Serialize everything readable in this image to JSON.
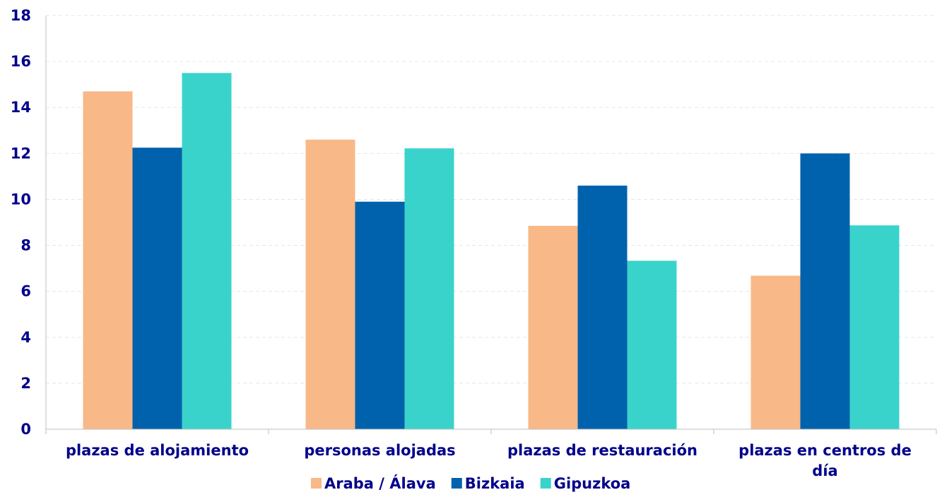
{
  "chart_data": {
    "type": "bar",
    "categories": [
      [
        "plazas de alojamiento"
      ],
      [
        "personas alojadas"
      ],
      [
        "plazas de restauración"
      ],
      [
        "plazas en centros de",
        "día"
      ]
    ],
    "series": [
      {
        "name": "Araba / Álava",
        "color": "#F8B887",
        "values": [
          14.7,
          12.6,
          8.85,
          6.68
        ]
      },
      {
        "name": "Bizkaia",
        "color": "#0062AC",
        "values": [
          12.25,
          9.9,
          10.6,
          12.0
        ]
      },
      {
        "name": "Gipuzkoa",
        "color": "#3AD3CC",
        "values": [
          15.5,
          12.22,
          7.33,
          8.87
        ]
      }
    ],
    "ylim": [
      0,
      18
    ],
    "yticks": [
      0,
      2,
      4,
      6,
      8,
      10,
      12,
      14,
      16,
      18
    ],
    "grid": true,
    "legend_position": "bottom"
  }
}
